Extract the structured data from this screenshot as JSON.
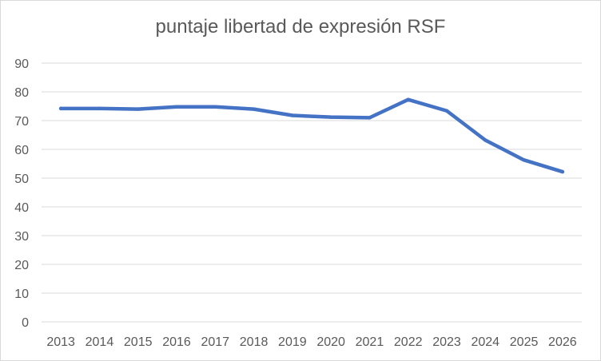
{
  "chart_data": {
    "type": "line",
    "title": "puntaje libertad de expresión RSF",
    "xlabel": "",
    "ylabel": "",
    "x": [
      "2013",
      "2014",
      "2015",
      "2016",
      "2017",
      "2018",
      "2019",
      "2020",
      "2021",
      "2022",
      "2023",
      "2024",
      "2025",
      "2026"
    ],
    "series": [
      {
        "values": [
          74.2,
          74.2,
          74.0,
          74.8,
          74.8,
          74.0,
          71.8,
          71.2,
          71.0,
          77.3,
          73.4,
          63.2,
          56.3,
          52.2
        ],
        "color": "#4472c4"
      }
    ],
    "yticks": [
      "0",
      "10",
      "20",
      "30",
      "40",
      "50",
      "60",
      "70",
      "80",
      "90"
    ],
    "ylim": [
      0,
      90
    ],
    "grid": true,
    "legend": "none"
  }
}
